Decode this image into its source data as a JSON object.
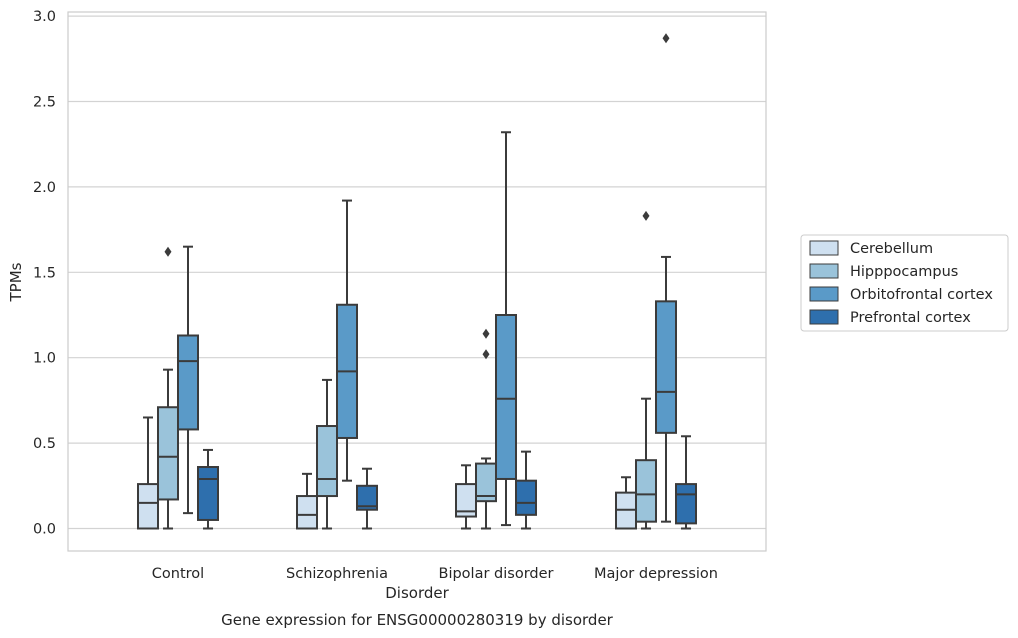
{
  "chart_data": {
    "type": "box",
    "caption": "Gene expression for ENSG00000280319 by disorder",
    "xlabel": "Disorder",
    "ylabel": "TPMs",
    "ylim": [
      -0.14,
      3.02
    ],
    "yticks": [
      0.0,
      0.5,
      1.0,
      1.5,
      2.0,
      2.5,
      3.0
    ],
    "ytick_labels": [
      "0.0",
      "0.5",
      "1.0",
      "1.5",
      "2.0",
      "2.5",
      "3.0"
    ],
    "grid": "horizontal",
    "legend_position": "right",
    "categories": [
      "Control",
      "Schizophrenia",
      "Bipolar disorder",
      "Major depression"
    ],
    "series": [
      {
        "name": "Cerebellum",
        "color": "#cfe0f0",
        "boxes": [
          {
            "whisker_low": 0.0,
            "q1": 0.0,
            "median": 0.15,
            "q3": 0.26,
            "whisker_high": 0.65,
            "outliers": []
          },
          {
            "whisker_low": 0.0,
            "q1": 0.0,
            "median": 0.08,
            "q3": 0.19,
            "whisker_high": 0.32,
            "outliers": []
          },
          {
            "whisker_low": 0.0,
            "q1": 0.07,
            "median": 0.1,
            "q3": 0.26,
            "whisker_high": 0.37,
            "outliers": []
          },
          {
            "whisker_low": 0.0,
            "q1": 0.0,
            "median": 0.11,
            "q3": 0.21,
            "whisker_high": 0.3,
            "outliers": []
          }
        ]
      },
      {
        "name": "Hipppocampus",
        "color": "#9ac3da",
        "boxes": [
          {
            "whisker_low": 0.0,
            "q1": 0.17,
            "median": 0.42,
            "q3": 0.71,
            "whisker_high": 0.93,
            "outliers": [
              1.62
            ]
          },
          {
            "whisker_low": 0.0,
            "q1": 0.19,
            "median": 0.29,
            "q3": 0.6,
            "whisker_high": 0.87,
            "outliers": []
          },
          {
            "whisker_low": 0.0,
            "q1": 0.16,
            "median": 0.19,
            "q3": 0.38,
            "whisker_high": 0.41,
            "outliers": [
              1.02,
              1.14
            ]
          },
          {
            "whisker_low": 0.0,
            "q1": 0.04,
            "median": 0.2,
            "q3": 0.4,
            "whisker_high": 0.76,
            "outliers": [
              1.83
            ]
          }
        ]
      },
      {
        "name": "Orbitofrontal cortex",
        "color": "#5a9ac8",
        "boxes": [
          {
            "whisker_low": 0.09,
            "q1": 0.58,
            "median": 0.98,
            "q3": 1.13,
            "whisker_high": 1.65,
            "outliers": []
          },
          {
            "whisker_low": 0.28,
            "q1": 0.53,
            "median": 0.92,
            "q3": 1.31,
            "whisker_high": 1.92,
            "outliers": []
          },
          {
            "whisker_low": 0.02,
            "q1": 0.29,
            "median": 0.76,
            "q3": 1.25,
            "whisker_high": 2.32,
            "outliers": []
          },
          {
            "whisker_low": 0.04,
            "q1": 0.56,
            "median": 0.8,
            "q3": 1.33,
            "whisker_high": 1.59,
            "outliers": [
              2.87
            ]
          }
        ]
      },
      {
        "name": "Prefrontal cortex",
        "color": "#2e6fad",
        "boxes": [
          {
            "whisker_low": 0.0,
            "q1": 0.05,
            "median": 0.29,
            "q3": 0.36,
            "whisker_high": 0.46,
            "outliers": []
          },
          {
            "whisker_low": 0.0,
            "q1": 0.11,
            "median": 0.13,
            "q3": 0.25,
            "whisker_high": 0.35,
            "outliers": []
          },
          {
            "whisker_low": 0.0,
            "q1": 0.08,
            "median": 0.15,
            "q3": 0.28,
            "whisker_high": 0.45,
            "outliers": []
          },
          {
            "whisker_low": 0.0,
            "q1": 0.03,
            "median": 0.2,
            "q3": 0.26,
            "whisker_high": 0.54,
            "outliers": []
          }
        ]
      }
    ]
  }
}
